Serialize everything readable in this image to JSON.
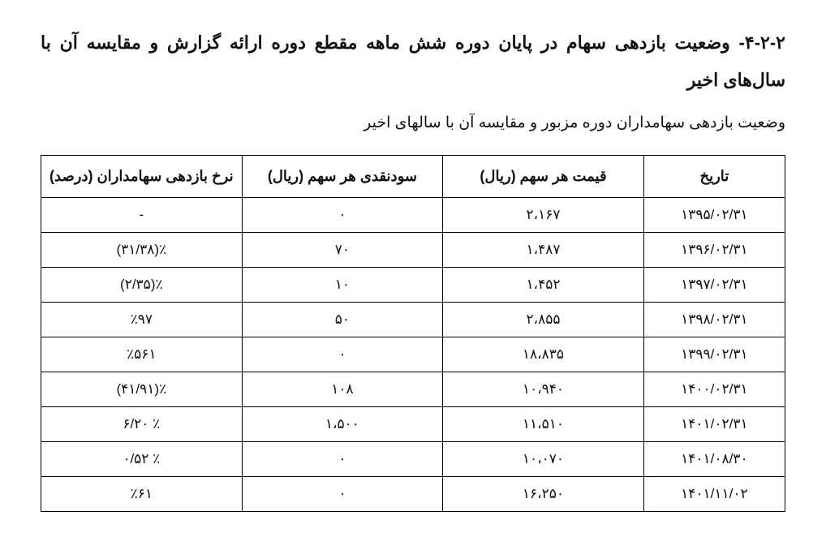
{
  "heading": "۴-۲-۲- وضعیت بازدهی سهام در پایان دوره شش ماهه مقطع دوره ارائه گزارش و مقایسه آن با سال‌های اخیر",
  "subheading": "وضعیت بازدهی سهامداران  دوره مزبور و  مقایسه آن با سالهای اخیر",
  "table": {
    "headers": {
      "date": "تاریخ",
      "price": "قیمت هر سهم (ریال)",
      "div": "سودنقدی هر سهم (ریال)",
      "ret": "نرخ بازدهی سهامداران (درصد)"
    },
    "rows": [
      {
        "date": "۱۳۹۵/۰۲/۳۱",
        "price": "۲،۱۶۷",
        "div": "۰",
        "ret": "-"
      },
      {
        "date": "۱۳۹۶/۰۲/۳۱",
        "price": "۱،۴۸۷",
        "div": "۷۰",
        "ret": "٪(۳۱/۳۸)"
      },
      {
        "date": "۱۳۹۷/۰۲/۳۱",
        "price": "۱،۴۵۲",
        "div": "۱۰",
        "ret": "٪(۲/۳۵)"
      },
      {
        "date": "۱۳۹۸/۰۲/۳۱",
        "price": "۲،۸۵۵",
        "div": "۵۰",
        "ret": "٪۹۷"
      },
      {
        "date": "۱۳۹۹/۰۲/۳۱",
        "price": "۱۸،۸۳۵",
        "div": "۰",
        "ret": "٪۵۶۱"
      },
      {
        "date": "۱۴۰۰/۰۲/۳۱",
        "price": "۱۰،۹۴۰",
        "div": "۱۰۸",
        "ret": "٪(۴۱/۹۱)"
      },
      {
        "date": "۱۴۰۱/۰۲/۳۱",
        "price": "۱۱،۵۱۰",
        "div": "۱،۵۰۰",
        "ret": "٪ ۶/۲۰"
      },
      {
        "date": "۱۴۰۱/۰۸/۳۰",
        "price": "۱۰،۰۷۰",
        "div": "۰",
        "ret": "٪ ۰/۵۲"
      },
      {
        "date": "۱۴۰۱/۱۱/۰۲",
        "price": "۱۶،۲۵۰",
        "div": "۰",
        "ret": "٪۶۱"
      }
    ]
  }
}
